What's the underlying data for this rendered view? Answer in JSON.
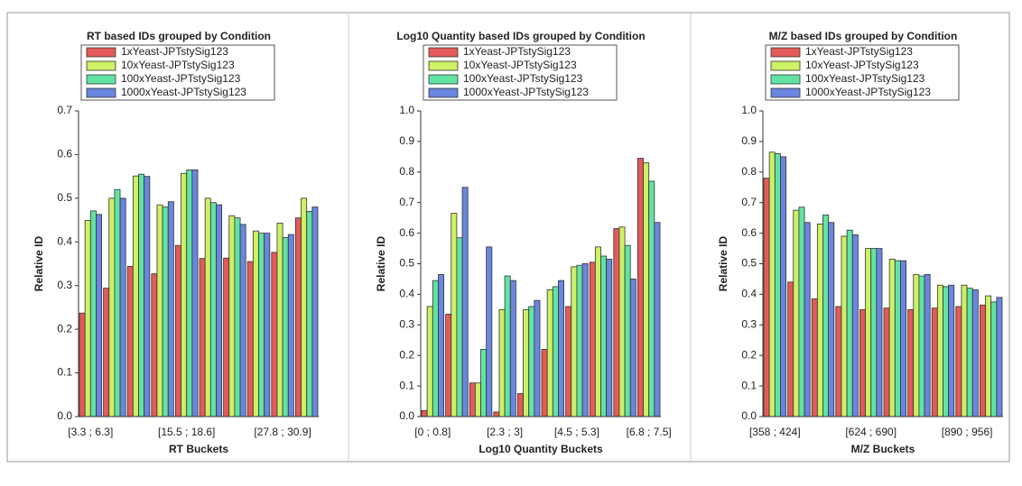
{
  "chart_data": [
    {
      "type": "bar",
      "title": "RT based IDs grouped by Condition",
      "x_label": "RT Buckets",
      "y_label": "Relative ID",
      "categories": [
        "[3.3 ; 6.3]",
        null,
        null,
        null,
        "[15.5 ; 18.6]",
        null,
        null,
        null,
        "[27.8 ; 30.9]",
        null
      ],
      "series": [
        {
          "name": "1xYeast-JPTstySig123",
          "color": "#e45a5a",
          "values": [
            0.237,
            0.294,
            0.344,
            0.327,
            0.392,
            0.362,
            0.363,
            0.355,
            0.376,
            0.455
          ]
        },
        {
          "name": "10xYeast-JPTstySig123",
          "color": "#cdf065",
          "values": [
            0.449,
            0.5,
            0.551,
            0.485,
            0.557,
            0.5,
            0.46,
            0.425,
            0.443,
            0.5
          ]
        },
        {
          "name": "100xYeast-JPTstySig123",
          "color": "#62e3a4",
          "values": [
            0.471,
            0.52,
            0.555,
            0.48,
            0.565,
            0.49,
            0.455,
            0.42,
            0.41,
            0.47
          ]
        },
        {
          "name": "1000xYeast-JPTstySig123",
          "color": "#6a86e0",
          "values": [
            0.463,
            0.5,
            0.55,
            0.492,
            0.565,
            0.485,
            0.44,
            0.42,
            0.417,
            0.48
          ]
        }
      ],
      "ylim": [
        0,
        0.7
      ],
      "yticks": [
        {
          "value": 0,
          "label": "0.0"
        },
        0.1,
        0.2,
        0.3,
        0.4,
        0.5,
        0.6,
        0.7
      ]
    },
    {
      "type": "bar",
      "title": "Log10 Quantity based IDs grouped by Condition",
      "x_label": "Log10 Quantity Buckets",
      "y_label": "Relative ID",
      "categories": [
        "[0 ; 0.8]",
        null,
        null,
        "[2.3 ; 3]",
        null,
        null,
        "[4.5 ; 5.3]",
        null,
        null,
        "[6.8 ; 7.5]"
      ],
      "series": [
        {
          "name": "1xYeast-JPTstySig123",
          "color": "#e45a5a",
          "values": [
            0.02,
            0.335,
            0.11,
            0.015,
            0.075,
            0.22,
            0.36,
            0.505,
            0.615,
            0.845
          ]
        },
        {
          "name": "10xYeast-JPTstySig123",
          "color": "#cdf065",
          "values": [
            0.36,
            0.665,
            0.11,
            0.35,
            0.35,
            0.415,
            0.49,
            0.555,
            0.62,
            0.83
          ]
        },
        {
          "name": "100xYeast-JPTstySig123",
          "color": "#62e3a4",
          "values": [
            0.445,
            0.585,
            0.22,
            0.46,
            0.36,
            0.425,
            0.495,
            0.525,
            0.56,
            0.77
          ]
        },
        {
          "name": "1000xYeast-JPTstySig123",
          "color": "#6a86e0",
          "values": [
            0.465,
            0.75,
            0.555,
            0.445,
            0.38,
            0.445,
            0.5,
            0.515,
            0.45,
            0.635
          ]
        }
      ],
      "ylim": [
        0,
        1
      ],
      "yticks": [
        {
          "value": 0,
          "label": "0.0"
        },
        0.1,
        0.2,
        0.3,
        0.4,
        0.5,
        0.6,
        0.7,
        0.8,
        0.9,
        {
          "value": 1,
          "label": "1.0"
        }
      ]
    },
    {
      "type": "bar",
      "title": "M/Z based IDs grouped by Condition",
      "x_label": "M/Z Buckets",
      "y_label": "Relative ID",
      "categories": [
        "[358 ; 424]",
        null,
        null,
        null,
        "[624 ; 690]",
        null,
        null,
        null,
        "[890 ; 956]",
        null
      ],
      "series": [
        {
          "name": "1xYeast-JPTstySig123",
          "color": "#e45a5a",
          "values": [
            0.78,
            0.44,
            0.385,
            0.36,
            0.35,
            0.355,
            0.35,
            0.355,
            0.36,
            0.365
          ]
        },
        {
          "name": "10xYeast-JPTstySig123",
          "color": "#cdf065",
          "values": [
            0.865,
            0.675,
            0.63,
            0.59,
            0.55,
            0.515,
            0.465,
            0.43,
            0.43,
            0.395
          ]
        },
        {
          "name": "100xYeast-JPTstySig123",
          "color": "#62e3a4",
          "values": [
            0.86,
            0.685,
            0.66,
            0.61,
            0.55,
            0.51,
            0.46,
            0.425,
            0.42,
            0.375
          ]
        },
        {
          "name": "1000xYeast-JPTstySig123",
          "color": "#6a86e0",
          "values": [
            0.85,
            0.635,
            0.635,
            0.595,
            0.55,
            0.51,
            0.465,
            0.43,
            0.415,
            0.39
          ]
        }
      ],
      "ylim": [
        0,
        1
      ],
      "yticks": [
        {
          "value": 0,
          "label": "0.0"
        },
        0.1,
        0.2,
        0.3,
        0.4,
        0.5,
        0.6,
        0.7,
        0.8,
        0.9,
        {
          "value": 1,
          "label": "1.0"
        }
      ]
    }
  ]
}
